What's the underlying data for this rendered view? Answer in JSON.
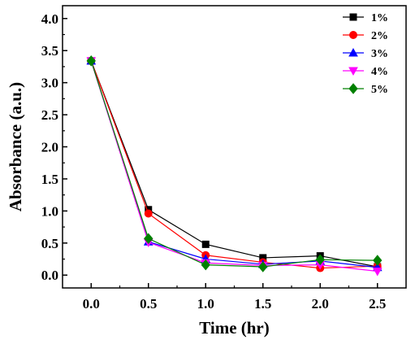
{
  "chart_data": {
    "type": "line",
    "xlabel": "Time (hr)",
    "ylabel": "Absorbance (a.u.)",
    "xlim": [
      -0.25,
      2.75
    ],
    "ylim": [
      -0.2,
      4.2
    ],
    "xticks": [
      "0.0",
      "0.5",
      "1.0",
      "1.5",
      "2.0",
      "2.5"
    ],
    "yticks": [
      "0.0",
      "0.5",
      "1.0",
      "1.5",
      "2.0",
      "2.5",
      "3.0",
      "3.5",
      "4.0"
    ],
    "x": [
      0.0,
      0.5,
      1.0,
      1.5,
      2.0,
      2.5
    ],
    "grid": false,
    "legend_position": "top-right",
    "series": [
      {
        "name": "1%",
        "color": "#000000",
        "marker": "square",
        "values": [
          3.34,
          1.02,
          0.48,
          0.27,
          0.3,
          0.13
        ]
      },
      {
        "name": "2%",
        "color": "#ff0000",
        "marker": "circle",
        "values": [
          3.34,
          0.96,
          0.31,
          0.2,
          0.11,
          0.14
        ]
      },
      {
        "name": "3%",
        "color": "#0000ff",
        "marker": "triangle-up",
        "values": [
          3.34,
          0.52,
          0.25,
          0.17,
          0.22,
          0.12
        ]
      },
      {
        "name": "4%",
        "color": "#ff00ff",
        "marker": "triangle-down",
        "values": [
          3.34,
          0.51,
          0.19,
          0.15,
          0.16,
          0.06
        ]
      },
      {
        "name": "5%",
        "color": "#008000",
        "marker": "diamond",
        "values": [
          3.34,
          0.57,
          0.16,
          0.13,
          0.24,
          0.23
        ]
      }
    ]
  }
}
